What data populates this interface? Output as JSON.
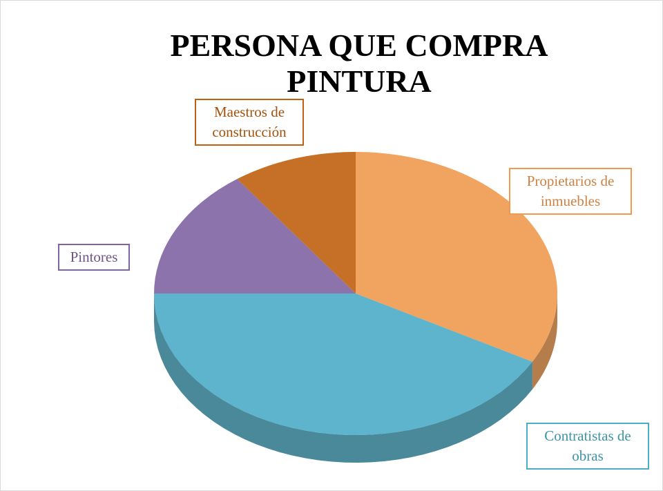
{
  "chart_data": {
    "type": "pie",
    "title": "PERSONA QUE COMPRA PINTURA",
    "categories": [
      "Propietarios de inmuebles",
      "Contratistas de obras",
      "Pintores",
      "Maestros de construcción"
    ],
    "values": [
      33,
      42,
      15,
      10
    ],
    "colors": [
      "#f0994f",
      "#4bacc6",
      "#8064a2",
      "#c0600f"
    ]
  }
}
